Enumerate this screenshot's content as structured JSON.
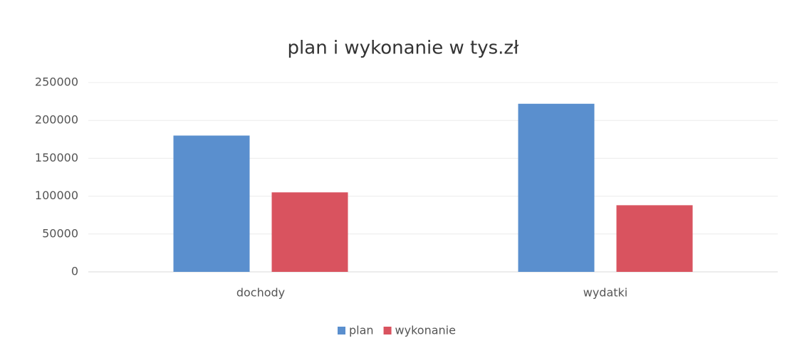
{
  "chart_data": {
    "type": "bar",
    "title": "plan i wykonanie w tys.zł",
    "categories": [
      "dochody",
      "wydatki"
    ],
    "series": [
      {
        "name": "plan",
        "color": "#5a8fce",
        "values": [
          180000,
          222000
        ]
      },
      {
        "name": "wykonanie",
        "color": "#d9535f",
        "values": [
          105000,
          88000
        ]
      }
    ],
    "ylim": [
      0,
      250000
    ],
    "yticks": [
      0,
      50000,
      100000,
      150000,
      200000,
      250000
    ],
    "grid": true,
    "legend": "bottom"
  }
}
